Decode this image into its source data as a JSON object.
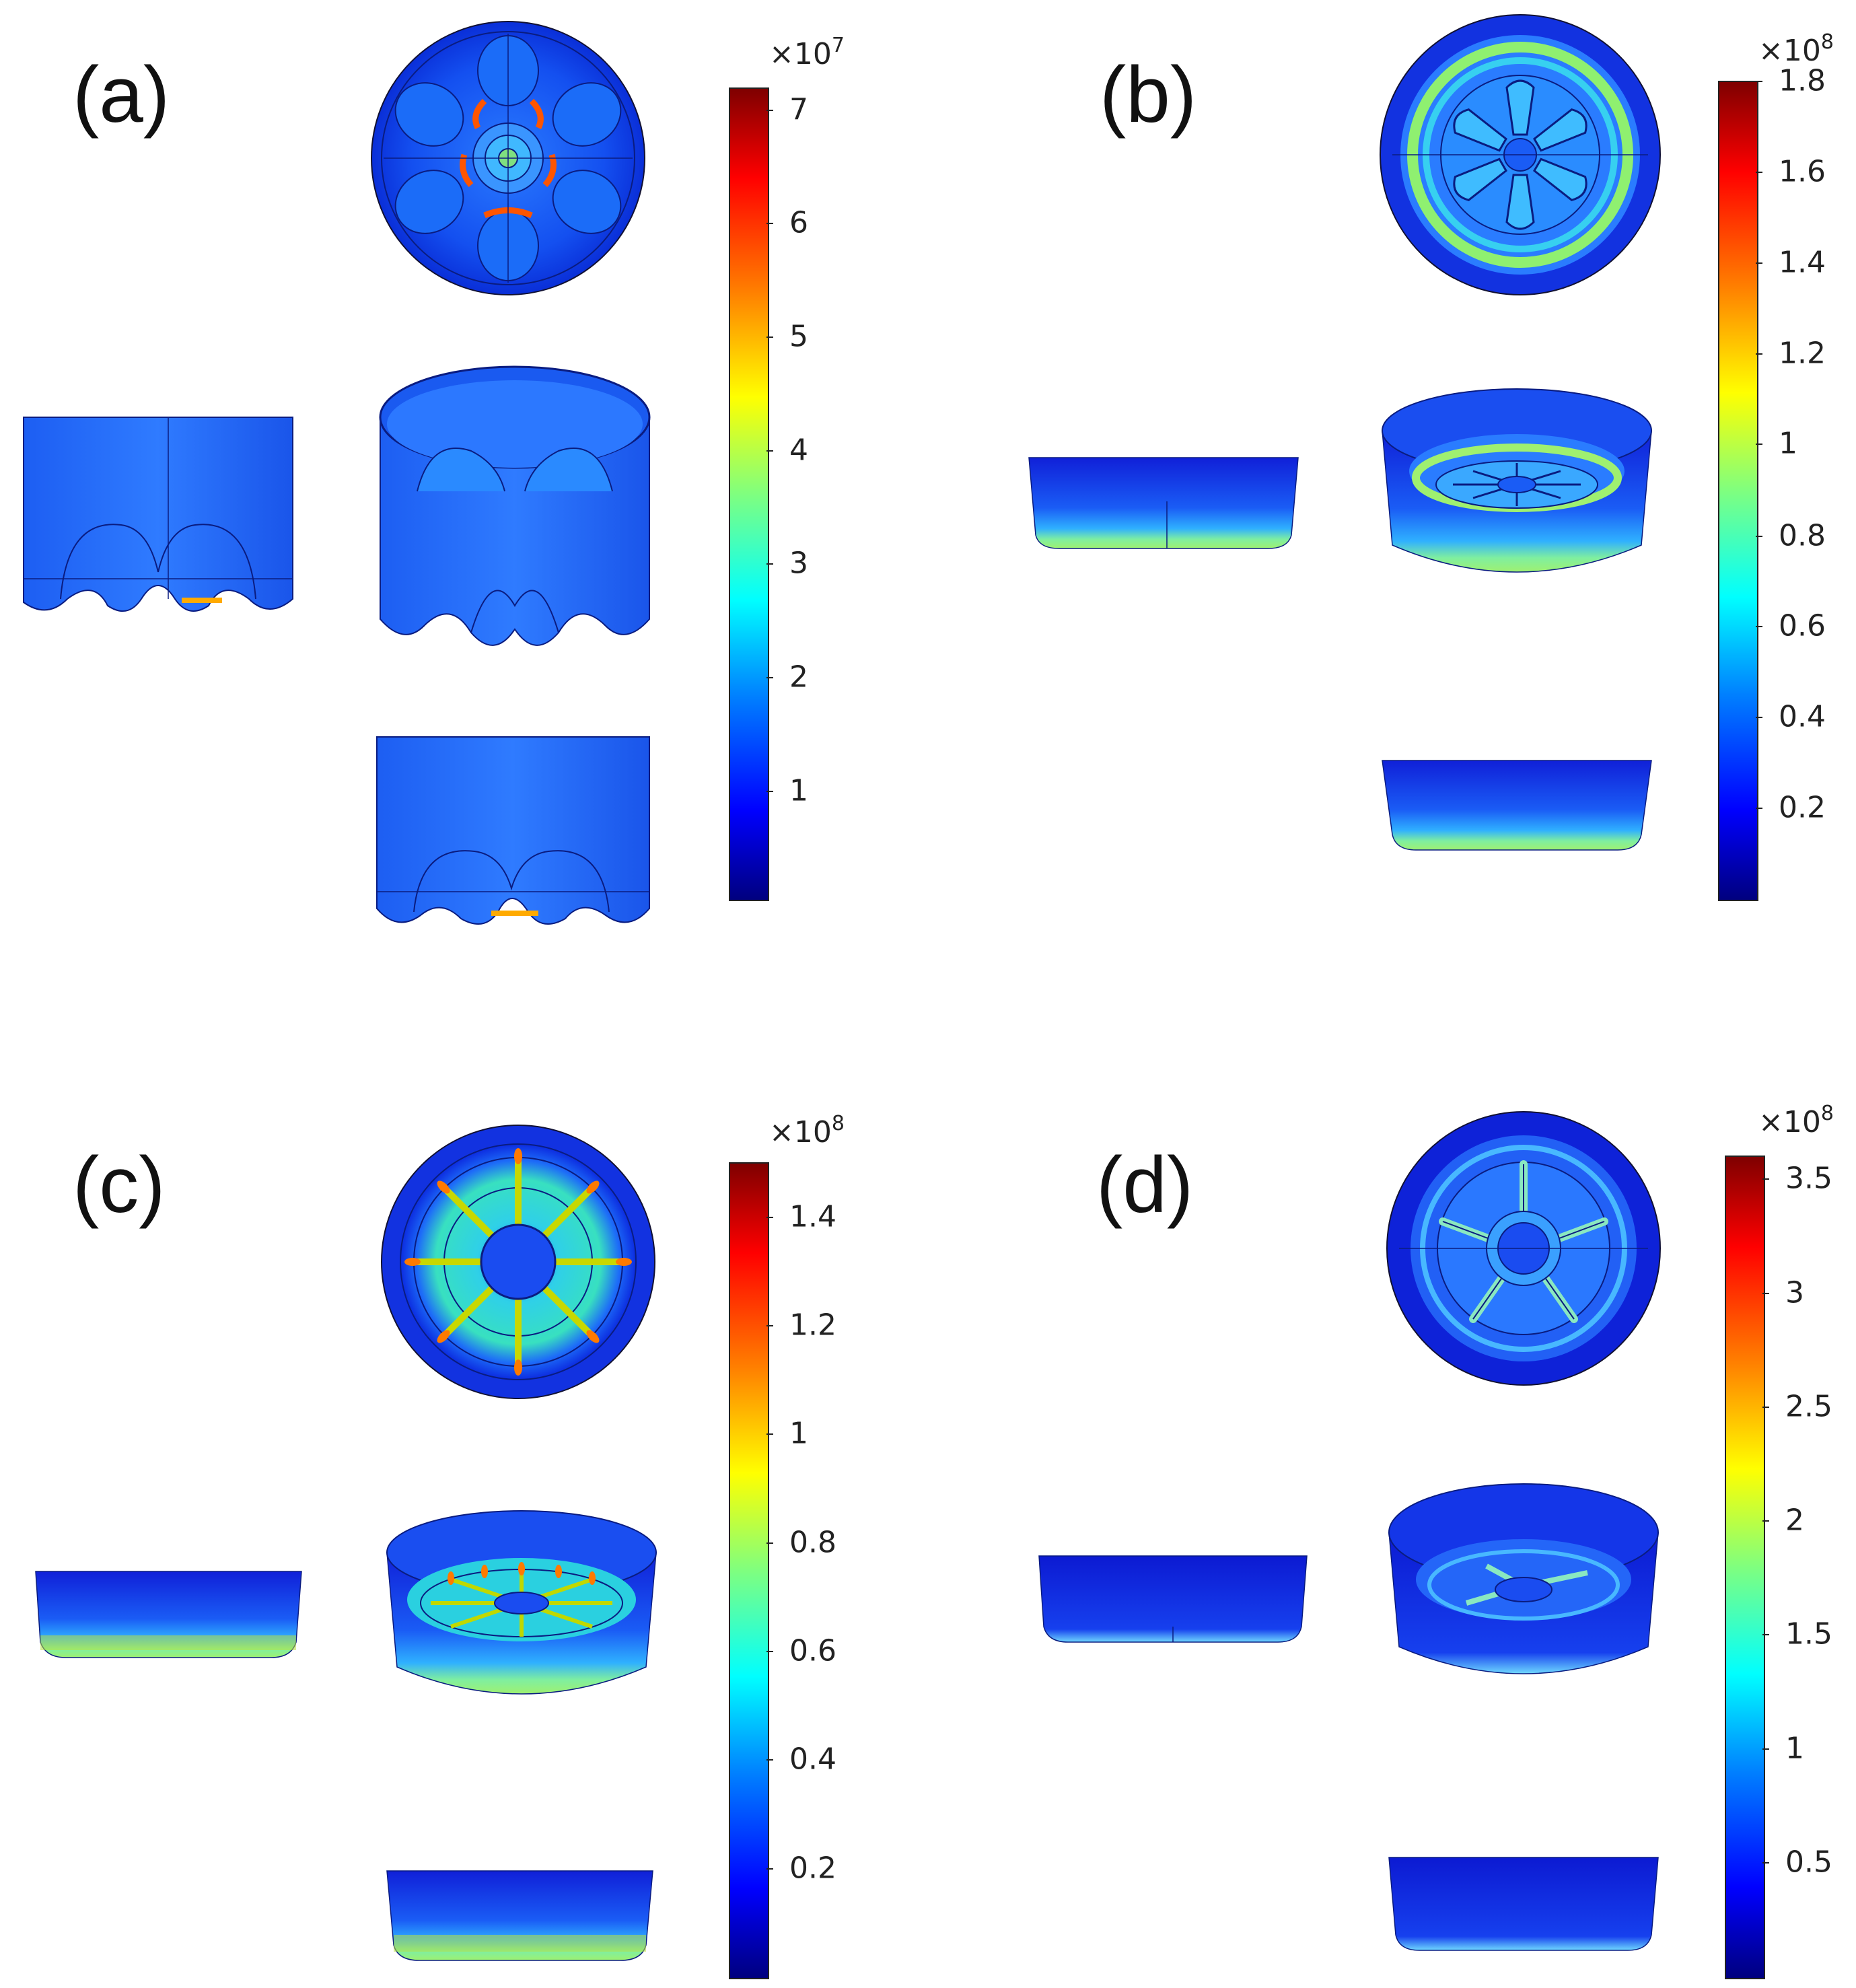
{
  "panels": [
    {
      "label": "(a)",
      "multiplier": "×10",
      "exponent": "7",
      "ticks": [
        "7",
        "6",
        "5",
        "4",
        "3",
        "2",
        "1"
      ],
      "tick_fracs": [
        0.973,
        0.833,
        0.693,
        0.553,
        0.413,
        0.273,
        0.133
      ]
    },
    {
      "label": "(b)",
      "multiplier": "×10",
      "exponent": "8",
      "ticks": [
        "1.8",
        "1.6",
        "1.4",
        "1.2",
        "1",
        "0.8",
        "0.6",
        "0.4",
        "0.2"
      ],
      "tick_fracs": [
        1.0,
        0.889,
        0.778,
        0.667,
        0.556,
        0.444,
        0.333,
        0.222,
        0.111
      ]
    },
    {
      "label": "(c)",
      "multiplier": "×10",
      "exponent": "8",
      "ticks": [
        "1.4",
        "1.2",
        "1",
        "0.8",
        "0.6",
        "0.4",
        "0.2"
      ],
      "tick_fracs": [
        0.933,
        0.8,
        0.667,
        0.533,
        0.4,
        0.267,
        0.133
      ]
    },
    {
      "label": "(d)",
      "multiplier": "×10",
      "exponent": "8",
      "ticks": [
        "3.5",
        "3",
        "2.5",
        "2",
        "1.5",
        "1",
        "0.5"
      ],
      "tick_fracs": [
        0.972,
        0.833,
        0.694,
        0.556,
        0.417,
        0.278,
        0.139
      ]
    }
  ],
  "colormap": "jet"
}
